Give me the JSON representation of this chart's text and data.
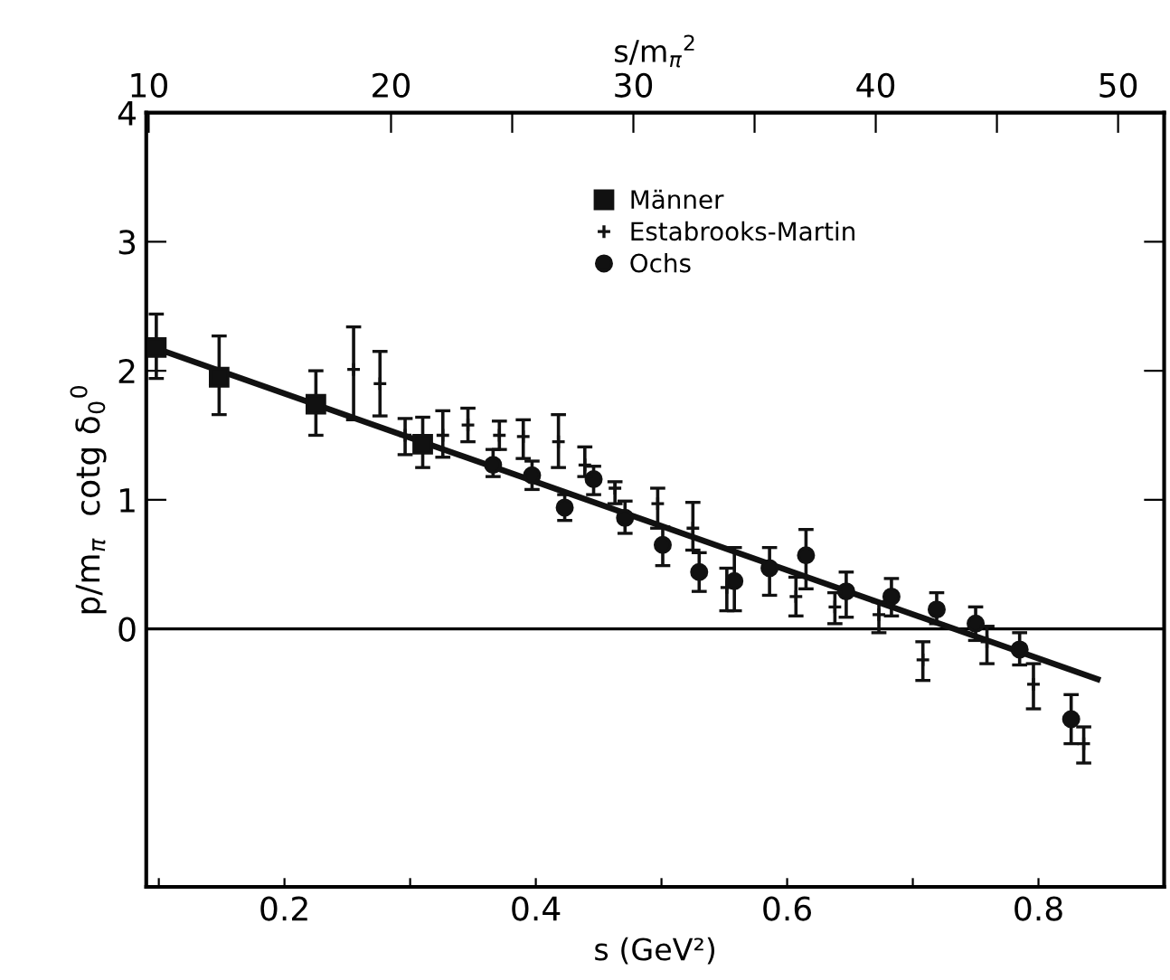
{
  "chart_data": {
    "type": "scatter",
    "xlabel": "s (GeV²)",
    "ylabel": "p/m$_{π}$  cotg δ$_{0}$$^{0}$",
    "x2label": "s/m$_{π}$$^{2}$",
    "xlim": [
      0.09,
      0.9
    ],
    "ylim": [
      -2,
      4
    ],
    "xticks": [
      {
        "value": 0.1,
        "label": null
      },
      0.2,
      {
        "value": 0.3,
        "label": null
      },
      0.4,
      {
        "value": 0.5,
        "label": null
      },
      0.6,
      {
        "value": 0.7,
        "label": null
      },
      0.8
    ],
    "yticks": [
      0,
      1,
      2,
      3,
      4
    ],
    "x2lim": [
      9.9,
      51.9
    ],
    "x2ticks": [
      10,
      20,
      {
        "value": 25,
        "label": null
      },
      30,
      {
        "value": 35,
        "label": null
      },
      40,
      {
        "value": 45,
        "label": null
      },
      50
    ],
    "ref_lines": [
      {
        "axis": "y",
        "value": 0,
        "color": "#000000",
        "line_style": "solid"
      }
    ],
    "grid": false,
    "legend": "top right",
    "series": [
      {
        "name": "Männer",
        "color": "#111111",
        "marker": "square",
        "x": [
          0.098,
          0.148,
          0.225,
          0.31
        ],
        "values": [
          2.18,
          1.95,
          1.74,
          1.43
        ],
        "errors": [
          [
            1.94,
            2.44
          ],
          [
            1.66,
            2.27
          ],
          [
            1.5,
            2.0
          ],
          [
            1.25,
            1.64
          ]
        ]
      },
      {
        "name": "Estabrooks-Martin",
        "color": "#111111",
        "marker": "cross",
        "x": [
          0.255,
          0.276,
          0.296,
          0.326,
          0.346,
          0.371,
          0.39,
          0.418,
          0.439,
          0.463,
          0.497,
          0.525,
          0.552,
          0.607,
          0.638,
          0.673,
          0.708,
          0.759,
          0.796,
          0.836
        ],
        "values": [
          2.01,
          1.9,
          1.5,
          1.5,
          1.58,
          1.5,
          1.49,
          1.45,
          1.27,
          1.09,
          0.97,
          0.78,
          0.32,
          0.25,
          0.17,
          0.11,
          -0.24,
          -0.1,
          -0.43,
          -0.89
        ],
        "errors": [
          [
            1.62,
            2.34
          ],
          [
            1.65,
            2.15
          ],
          [
            1.35,
            1.63
          ],
          [
            1.33,
            1.69
          ],
          [
            1.45,
            1.71
          ],
          [
            1.39,
            1.61
          ],
          [
            1.32,
            1.62
          ],
          [
            1.25,
            1.66
          ],
          [
            1.18,
            1.41
          ],
          [
            0.97,
            1.14
          ],
          [
            0.78,
            1.09
          ],
          [
            0.61,
            0.98
          ],
          [
            0.14,
            0.47
          ],
          [
            0.1,
            0.4
          ],
          [
            0.04,
            0.28
          ],
          [
            -0.03,
            0.21
          ],
          [
            -0.4,
            -0.1
          ],
          [
            -0.27,
            0.02
          ],
          [
            -0.62,
            -0.27
          ],
          [
            -1.04,
            -0.76
          ]
        ]
      },
      {
        "name": "Ochs",
        "color": "#111111",
        "marker": "circle",
        "x": [
          0.366,
          0.397,
          0.423,
          0.446,
          0.471,
          0.501,
          0.53,
          0.558,
          0.586,
          0.615,
          0.647,
          0.683,
          0.719,
          0.75,
          0.785,
          0.826
        ],
        "values": [
          1.27,
          1.19,
          0.94,
          1.16,
          0.86,
          0.65,
          0.44,
          0.37,
          0.47,
          0.57,
          0.29,
          0.25,
          0.15,
          0.04,
          -0.16,
          -0.7
        ],
        "errors": [
          [
            1.18,
            1.39
          ],
          [
            1.08,
            1.3
          ],
          [
            0.84,
            1.04
          ],
          [
            1.04,
            1.26
          ],
          [
            0.74,
            0.99
          ],
          [
            0.49,
            0.79
          ],
          [
            0.29,
            0.59
          ],
          [
            0.14,
            0.63
          ],
          [
            0.26,
            0.63
          ],
          [
            0.31,
            0.77
          ],
          [
            0.09,
            0.44
          ],
          [
            0.1,
            0.39
          ],
          [
            0.04,
            0.28
          ],
          [
            -0.09,
            0.17
          ],
          [
            -0.28,
            -0.03
          ],
          [
            -0.89,
            -0.51
          ]
        ]
      },
      {
        "type": "line",
        "color": "#111111",
        "line_style": "solid",
        "x": [
          0.09,
          0.847
        ],
        "values": [
          2.2,
          -0.39
        ]
      }
    ]
  }
}
